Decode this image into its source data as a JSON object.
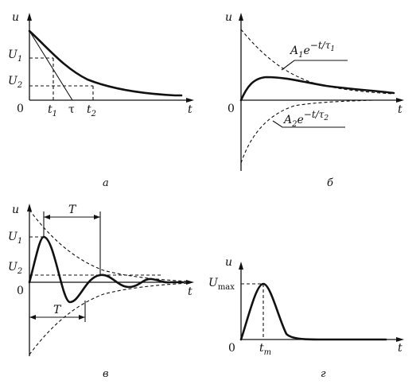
{
  "panel_a": {
    "caption": "а",
    "labels": {
      "u": "u",
      "U1": "U",
      "U1_sub": "1",
      "U2": "U",
      "U2_sub": "2",
      "zero": "0",
      "t1": "t",
      "t1_sub": "1",
      "tau": "τ",
      "t2": "t",
      "t2_sub": "2",
      "t": "t"
    }
  },
  "panel_b": {
    "caption": "б",
    "labels": {
      "u": "u",
      "zero": "0",
      "t": "t"
    },
    "formula_1": {
      "A": "A",
      "A_sub": "1",
      "e": "e",
      "exp": "−t/τ",
      "exp_sub": "1"
    },
    "formula_2": {
      "A": "A",
      "A_sub": "2",
      "e": "e",
      "exp": "−t/τ",
      "exp_sub": "2"
    }
  },
  "panel_v": {
    "caption": "в",
    "labels": {
      "u": "u",
      "U1": "U",
      "U1_sub": "1",
      "U2": "U",
      "U2_sub": "2",
      "zero": "0",
      "T_top": "T",
      "T_bottom": "T",
      "t": "t"
    }
  },
  "panel_g": {
    "caption": "г",
    "labels": {
      "u": "u",
      "Umax": "U",
      "Umax_sub": "max",
      "zero": "0",
      "tm": "t",
      "tm_sub": "m",
      "t": "t"
    }
  }
}
